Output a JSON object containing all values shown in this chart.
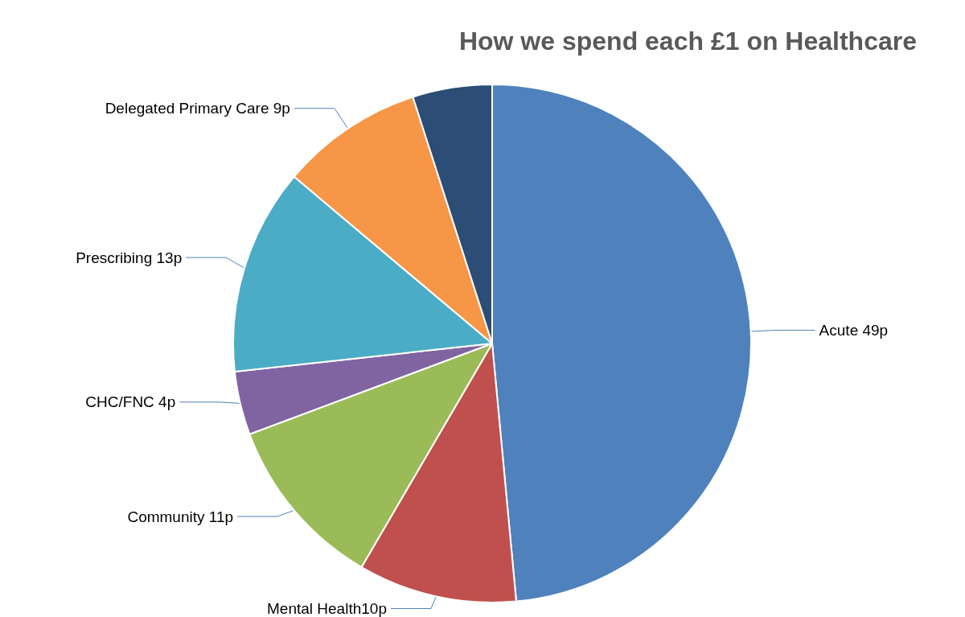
{
  "chart_data": {
    "type": "pie",
    "title": "How we spend each £1 on Healthcare",
    "categories": [
      "Acute 49p",
      "Mental Health10p",
      "Community 11p",
      "CHC/FNC 4p",
      "Prescribing 13p",
      "Delegated Primary Care 9p",
      null
    ],
    "values": [
      49,
      10,
      11,
      4,
      13,
      9,
      5
    ],
    "colors": [
      "#4f81bd",
      "#c0504d",
      "#9bbb59",
      "#8064a2",
      "#4bacc6",
      "#f79646",
      "#2c4d75"
    ],
    "legend": false
  }
}
